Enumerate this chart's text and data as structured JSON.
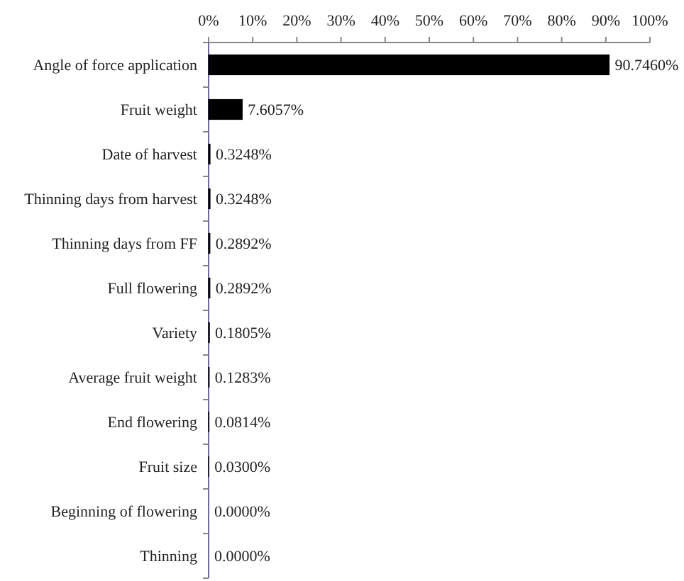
{
  "chart_data": {
    "type": "bar",
    "orientation": "horizontal",
    "categories": [
      "Angle of force application",
      "Fruit weight",
      "Date of harvest",
      "Thinning days from harvest",
      "Thinning days from FF",
      "Full flowering",
      "Variety",
      "Average fruit weight",
      "End flowering",
      "Fruit size",
      "Beginning of flowering",
      "Thinning"
    ],
    "values": [
      90.746,
      7.6057,
      0.3248,
      0.3248,
      0.2892,
      0.2892,
      0.1805,
      0.1283,
      0.0814,
      0.03,
      0,
      0
    ],
    "value_labels": [
      "90.7460%",
      "7.6057%",
      "0.3248%",
      "0.3248%",
      "0.2892%",
      "0.2892%",
      "0.1805%",
      "0.1283%",
      "0.0814%",
      "0.0300%",
      "0.0000%",
      "0.0000%"
    ],
    "color": "#000000",
    "xlim": [
      0,
      100
    ],
    "xticks": [
      {
        "value": 0,
        "label": "0%"
      },
      {
        "value": 10,
        "label": "10%"
      },
      {
        "value": 20,
        "label": "20%"
      },
      {
        "value": 30,
        "label": "30%"
      },
      {
        "value": 40,
        "label": "40%"
      },
      {
        "value": 50,
        "label": "50%"
      },
      {
        "value": 60,
        "label": "60%"
      },
      {
        "value": 70,
        "label": "70%"
      },
      {
        "value": 80,
        "label": "80%"
      },
      {
        "value": 90,
        "label": "90%"
      },
      {
        "value": 100,
        "label": "100%"
      }
    ],
    "grid": false
  }
}
